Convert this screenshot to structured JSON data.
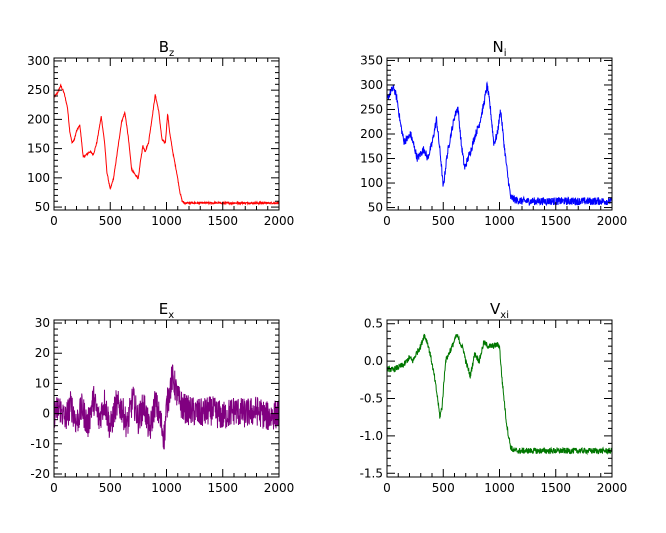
{
  "chart_data": [
    {
      "type": "line",
      "title": "B",
      "title_sub": "z",
      "color": "#ff0000",
      "xlim": [
        0,
        2000
      ],
      "ylim": [
        45,
        305
      ],
      "xticks": [
        0,
        500,
        1000,
        1500,
        2000
      ],
      "yticks": [
        50,
        100,
        150,
        200,
        250,
        300
      ],
      "noise": 1.5,
      "series": [
        {
          "x": [
            0,
            30,
            60,
            90,
            120,
            140,
            160,
            180,
            200,
            230,
            260,
            290,
            320,
            350,
            380,
            420,
            450,
            470,
            500,
            530,
            560,
            600,
            630,
            660,
            690,
            720,
            750,
            770,
            790,
            810,
            840,
            870,
            900,
            930,
            960,
            990,
            1010,
            1030,
            1060,
            1090,
            1120,
            1140,
            1160,
            1200,
            1300,
            1400,
            1500,
            1600,
            1700,
            1800,
            1900,
            2000
          ],
          "y": [
            238,
            245,
            258,
            245,
            220,
            180,
            160,
            165,
            180,
            190,
            135,
            140,
            145,
            140,
            160,
            205,
            160,
            110,
            80,
            100,
            140,
            195,
            212,
            170,
            115,
            105,
            100,
            130,
            155,
            145,
            160,
            200,
            242,
            215,
            165,
            160,
            210,
            175,
            140,
            110,
            75,
            60,
            57,
            57,
            57,
            57,
            57,
            57,
            57,
            57,
            57,
            57
          ]
        }
      ]
    },
    {
      "type": "line",
      "title": "N",
      "title_sub": "i",
      "color": "#0000ff",
      "xlim": [
        0,
        2000
      ],
      "ylim": [
        45,
        355
      ],
      "xticks": [
        0,
        500,
        1000,
        1500,
        2000
      ],
      "yticks": [
        50,
        100,
        150,
        200,
        250,
        300,
        350
      ],
      "noise": 8,
      "series": [
        {
          "x": [
            0,
            30,
            60,
            90,
            120,
            150,
            180,
            210,
            240,
            270,
            300,
            330,
            360,
            400,
            440,
            480,
            500,
            530,
            560,
            600,
            630,
            660,
            690,
            720,
            750,
            780,
            820,
            860,
            890,
            920,
            950,
            980,
            1010,
            1040,
            1070,
            1100,
            1150,
            1200,
            1300,
            1400,
            1500,
            1600,
            1700,
            1800,
            1900,
            2000
          ],
          "y": [
            270,
            285,
            295,
            270,
            220,
            185,
            190,
            200,
            175,
            150,
            160,
            170,
            150,
            180,
            230,
            145,
            90,
            150,
            190,
            235,
            255,
            180,
            130,
            150,
            170,
            195,
            220,
            260,
            300,
            250,
            180,
            200,
            250,
            180,
            120,
            70,
            65,
            63,
            63,
            63,
            63,
            63,
            63,
            63,
            63,
            63
          ]
        }
      ]
    },
    {
      "type": "line",
      "title": "E",
      "title_sub": "x",
      "color": "#800080",
      "xlim": [
        0,
        2000
      ],
      "ylim": [
        -21,
        31
      ],
      "xticks": [
        0,
        500,
        1000,
        1500,
        2000
      ],
      "yticks": [
        -20,
        -10,
        0,
        10,
        20,
        30
      ],
      "noise": 5,
      "series": [
        {
          "x": [
            0,
            50,
            100,
            150,
            200,
            250,
            300,
            350,
            400,
            450,
            500,
            550,
            600,
            650,
            700,
            750,
            800,
            850,
            900,
            950,
            980,
            1000,
            1030,
            1050,
            1070,
            1100,
            1150,
            1200,
            1300,
            1400,
            1500,
            1600,
            1700,
            1800,
            1900,
            2000
          ],
          "y": [
            0,
            2,
            -2,
            3,
            -3,
            2,
            -4,
            5,
            -2,
            4,
            -5,
            3,
            2,
            -4,
            5,
            -2,
            3,
            -6,
            4,
            -3,
            -8,
            2,
            8,
            12,
            10,
            5,
            2,
            1,
            0,
            1,
            -1,
            1,
            0,
            1,
            -1,
            0
          ]
        }
      ]
    },
    {
      "type": "line",
      "title": "V",
      "title_sub": "xi",
      "color": "#007700",
      "xlim": [
        0,
        2000
      ],
      "ylim": [
        -1.55,
        0.55
      ],
      "xticks": [
        0,
        500,
        1000,
        1500,
        2000
      ],
      "yticks": [
        -1.5,
        -1.0,
        -0.5,
        0.0,
        0.5
      ],
      "ytick_labels": [
        "-1.5",
        "-1.0",
        "-0.5",
        "0.0",
        "0.5"
      ],
      "noise": 0.04,
      "series": [
        {
          "x": [
            0,
            50,
            100,
            150,
            200,
            230,
            260,
            300,
            330,
            360,
            390,
            420,
            450,
            470,
            490,
            520,
            550,
            580,
            620,
            650,
            680,
            700,
            740,
            780,
            820,
            860,
            900,
            940,
            980,
            1000,
            1020,
            1040,
            1060,
            1080,
            1100,
            1120,
            1150,
            1200,
            1300,
            1400,
            1500,
            1600,
            1700,
            1800,
            1900,
            2000
          ],
          "y": [
            -0.1,
            -0.12,
            -0.08,
            -0.05,
            0.05,
            0.0,
            0.1,
            0.2,
            0.35,
            0.25,
            0.05,
            -0.2,
            -0.5,
            -0.75,
            -0.6,
            0.0,
            0.1,
            0.2,
            0.35,
            0.25,
            0.15,
            0.0,
            -0.2,
            0.1,
            0.0,
            0.25,
            0.2,
            0.2,
            0.22,
            0.2,
            -0.2,
            -0.5,
            -0.8,
            -1.0,
            -1.15,
            -1.19,
            -1.2,
            -1.2,
            -1.2,
            -1.2,
            -1.2,
            -1.2,
            -1.2,
            -1.2,
            -1.2,
            -1.2
          ]
        }
      ]
    }
  ]
}
